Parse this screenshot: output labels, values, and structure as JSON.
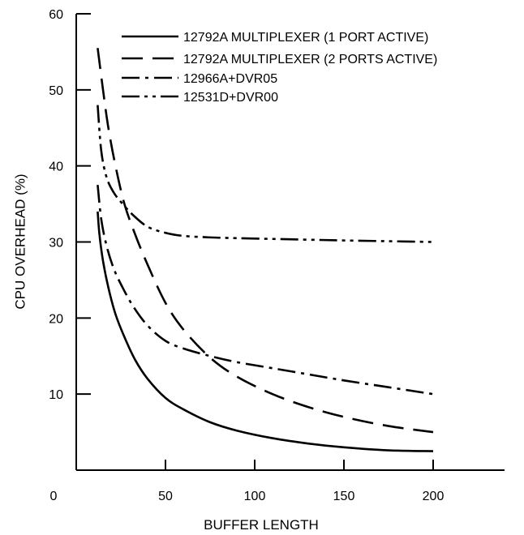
{
  "chart_data": {
    "type": "line",
    "xlabel": "BUFFER LENGTH",
    "ylabel": "CPU OVERHEAD (%)",
    "xlim": [
      0,
      240
    ],
    "ylim": [
      0,
      60
    ],
    "origin_label": "0",
    "x_ticks": [
      50,
      100,
      150,
      200
    ],
    "y_ticks": [
      10,
      20,
      30,
      40,
      50,
      60
    ],
    "grid": false,
    "legend_position": "top-right",
    "series": [
      {
        "name": "12792A MULTIPLEXER (1 PORT ACTIVE)",
        "style": "solid",
        "x": [
          12,
          13,
          15,
          18,
          22,
          27,
          33,
          40,
          50,
          60,
          75,
          90,
          110,
          130,
          150,
          175,
          200
        ],
        "y": [
          34,
          31,
          27.5,
          24,
          20.5,
          17.5,
          14.5,
          12,
          9.5,
          8,
          6.3,
          5.2,
          4.2,
          3.5,
          3,
          2.6,
          2.5
        ]
      },
      {
        "name": "12792A MULTIPLEXER (2 PORTS ACTIVE)",
        "style": "dashed",
        "x": [
          12,
          15,
          18,
          22,
          27,
          33,
          40,
          50,
          60,
          75,
          90,
          110,
          130,
          150,
          175,
          200
        ],
        "y": [
          55.5,
          50,
          45,
          40,
          35,
          31,
          27,
          22,
          18.5,
          14.8,
          12.3,
          10,
          8.3,
          7,
          5.8,
          5
        ]
      },
      {
        "name": "12966A+DVR05",
        "style": "dashdot",
        "x": [
          12,
          14,
          17,
          21,
          26,
          32,
          40,
          50,
          60,
          75,
          90,
          110,
          130,
          150,
          175,
          200
        ],
        "y": [
          37.5,
          33,
          29.5,
          26.5,
          24,
          21.5,
          19,
          17,
          16,
          15,
          14.2,
          13.4,
          12.6,
          11.8,
          10.9,
          10
        ]
      },
      {
        "name": "12531D+DVR00",
        "style": "dashdotdot",
        "x": [
          12,
          14,
          17,
          21,
          26,
          32,
          40,
          50,
          60,
          75,
          90,
          110,
          130,
          150,
          175,
          200
        ],
        "y": [
          48,
          42,
          38.5,
          36.5,
          35,
          33.5,
          32,
          31.2,
          30.8,
          30.6,
          30.5,
          30.4,
          30.3,
          30.2,
          30.1,
          30
        ]
      }
    ]
  }
}
